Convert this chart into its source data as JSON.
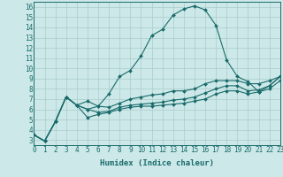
{
  "xlabel": "Humidex (Indice chaleur)",
  "xlim": [
    0,
    23
  ],
  "ylim": [
    2.5,
    16.5
  ],
  "xticks": [
    0,
    1,
    2,
    3,
    4,
    5,
    6,
    7,
    8,
    9,
    10,
    11,
    12,
    13,
    14,
    15,
    16,
    17,
    18,
    19,
    20,
    21,
    22,
    23
  ],
  "yticks": [
    3,
    4,
    5,
    6,
    7,
    8,
    9,
    10,
    11,
    12,
    13,
    14,
    15,
    16
  ],
  "bg_color": "#cce8e8",
  "grid_color": "#aacccc",
  "line_color": "#1a6b6b",
  "lines": [
    [
      3.5,
      2.9,
      4.8,
      7.2,
      6.4,
      6.8,
      6.3,
      7.5,
      9.2,
      9.8,
      11.2,
      13.2,
      13.8,
      15.2,
      15.8,
      16.1,
      15.7,
      14.2,
      10.8,
      9.2,
      8.7,
      7.7,
      8.3,
      9.2
    ],
    [
      3.5,
      2.9,
      4.8,
      7.2,
      6.4,
      6.0,
      6.3,
      6.2,
      6.6,
      7.0,
      7.2,
      7.4,
      7.5,
      7.8,
      7.8,
      8.0,
      8.5,
      8.8,
      8.8,
      8.8,
      8.5,
      8.5,
      8.8,
      9.2
    ],
    [
      3.5,
      2.9,
      4.8,
      7.2,
      6.4,
      6.0,
      5.7,
      5.8,
      6.2,
      6.4,
      6.5,
      6.6,
      6.7,
      6.9,
      7.0,
      7.2,
      7.6,
      8.0,
      8.3,
      8.3,
      7.8,
      7.9,
      8.3,
      9.2
    ],
    [
      3.5,
      2.9,
      4.8,
      7.2,
      6.4,
      5.2,
      5.5,
      5.7,
      6.0,
      6.2,
      6.3,
      6.3,
      6.4,
      6.5,
      6.6,
      6.8,
      7.0,
      7.5,
      7.8,
      7.8,
      7.5,
      7.7,
      8.0,
      8.8
    ]
  ],
  "marker": "D",
  "markersize": 2.0,
  "linewidth": 0.8,
  "font_color": "#1a6b6b",
  "tick_fontsize": 5.5,
  "label_fontsize": 6.5
}
